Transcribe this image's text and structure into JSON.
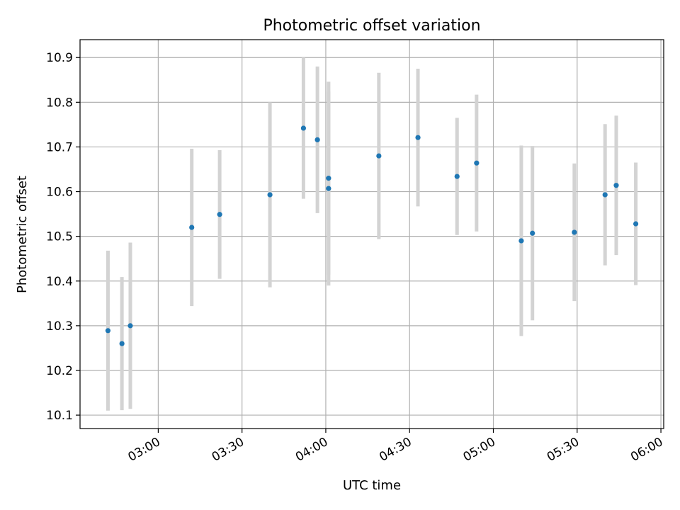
{
  "chart_data": {
    "type": "scatter",
    "title": "Photometric offset variation",
    "xlabel": "UTC time",
    "ylabel": "Photometric offset",
    "x_is_time": true,
    "xlim": [
      "02:32",
      "06:01"
    ],
    "ylim": [
      10.07,
      10.94
    ],
    "x_ticks": [
      "03:00",
      "03:30",
      "04:00",
      "04:30",
      "05:00",
      "05:30",
      "06:00"
    ],
    "y_ticks": [
      "10.1",
      "10.2",
      "10.3",
      "10.4",
      "10.5",
      "10.6",
      "10.7",
      "10.8",
      "10.9"
    ],
    "grid": true,
    "errorbar_color": "#d3d3d3",
    "point_color": "#1f77b4",
    "points": [
      {
        "x": "02:42",
        "y": 10.289,
        "y_low": 10.11,
        "y_high": 10.468
      },
      {
        "x": "02:47",
        "y": 10.26,
        "y_low": 10.111,
        "y_high": 10.409
      },
      {
        "x": "02:50",
        "y": 10.3,
        "y_low": 10.114,
        "y_high": 10.486
      },
      {
        "x": "03:12",
        "y": 10.52,
        "y_low": 10.344,
        "y_high": 10.696
      },
      {
        "x": "03:22",
        "y": 10.549,
        "y_low": 10.405,
        "y_high": 10.693
      },
      {
        "x": "03:40",
        "y": 10.593,
        "y_low": 10.386,
        "y_high": 10.8
      },
      {
        "x": "03:52",
        "y": 10.742,
        "y_low": 10.584,
        "y_high": 10.9
      },
      {
        "x": "03:57",
        "y": 10.716,
        "y_low": 10.552,
        "y_high": 10.88
      },
      {
        "x": "04:01",
        "y": 10.607,
        "y_low": 10.39,
        "y_high": 10.824
      },
      {
        "x": "04:01",
        "y": 10.63,
        "y_low": 10.414,
        "y_high": 10.846
      },
      {
        "x": "04:19",
        "y": 10.68,
        "y_low": 10.494,
        "y_high": 10.866
      },
      {
        "x": "04:33",
        "y": 10.721,
        "y_low": 10.567,
        "y_high": 10.875
      },
      {
        "x": "04:47",
        "y": 10.634,
        "y_low": 10.503,
        "y_high": 10.765
      },
      {
        "x": "04:54",
        "y": 10.664,
        "y_low": 10.511,
        "y_high": 10.817
      },
      {
        "x": "05:10",
        "y": 10.49,
        "y_low": 10.277,
        "y_high": 10.703
      },
      {
        "x": "05:14",
        "y": 10.507,
        "y_low": 10.312,
        "y_high": 10.702
      },
      {
        "x": "05:29",
        "y": 10.509,
        "y_low": 10.355,
        "y_high": 10.663
      },
      {
        "x": "05:40",
        "y": 10.593,
        "y_low": 10.435,
        "y_high": 10.751
      },
      {
        "x": "05:44",
        "y": 10.614,
        "y_low": 10.458,
        "y_high": 10.77
      },
      {
        "x": "05:51",
        "y": 10.528,
        "y_low": 10.391,
        "y_high": 10.665
      }
    ]
  }
}
